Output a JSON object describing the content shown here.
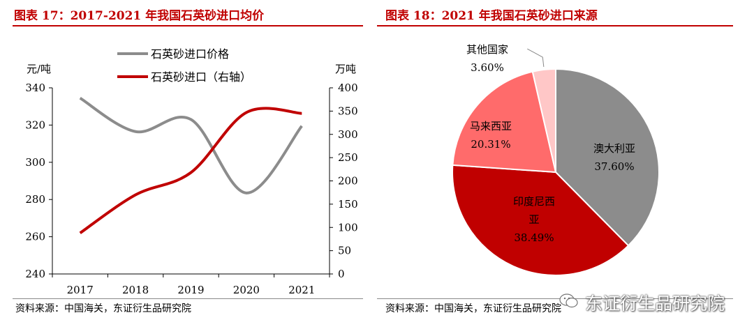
{
  "left_panel": {
    "title": "图表 17：2017-2021 年我国石英砂进口均价",
    "source": "资料来源：中国海关，东证衍生品研究院"
  },
  "right_panel": {
    "title": "图表 18：2021 年我国石英砂进口来源",
    "source": "资料来源：中国海关，东证衍生品研究院"
  },
  "watermark": {
    "text": "东证衍生品研究院",
    "icon": "wechat-icon"
  },
  "colors": {
    "title_red": "#c00000",
    "series_gray": "#8c8c8c",
    "series_red": "#c00000"
  },
  "chart_data": [
    {
      "type": "line",
      "title": "",
      "x": [
        "2017",
        "2018",
        "2019",
        "2020",
        "2021"
      ],
      "ylabel": "元/吨",
      "ylabel_right": "万吨",
      "ylim": [
        240,
        340
      ],
      "ylim_right": [
        0,
        400
      ],
      "yticks": [
        "240",
        "260",
        "280",
        "300",
        "320",
        "340"
      ],
      "yticks_right": [
        "0",
        "50",
        "100",
        "150",
        "200",
        "250",
        "300",
        "350",
        "400"
      ],
      "legend_position": "top",
      "grid": false,
      "series": [
        {
          "name": "石英砂进口价格",
          "axis": "left",
          "color": "#8c8c8c",
          "values": [
            334.5,
            316.5,
            323,
            283.5,
            319.5
          ]
        },
        {
          "name": "石英砂进口（右轴）",
          "axis": "right",
          "color": "#c00000",
          "values": [
            88,
            170,
            218,
            347,
            345
          ]
        }
      ]
    },
    {
      "type": "pie",
      "title": "",
      "slices": [
        {
          "label": "澳大利亚",
          "value": 37.6,
          "display": "37.60%",
          "color": "#8c8c8c"
        },
        {
          "label": "印度尼西亚",
          "value": 38.49,
          "display": "38.49%",
          "color": "#c00000"
        },
        {
          "label": "马来西亚",
          "value": 20.31,
          "display": "20.31%",
          "color": "#ff6b6b"
        },
        {
          "label": "其他国家",
          "value": 3.6,
          "display": "3.60%",
          "color": "#ffc7c7"
        }
      ]
    }
  ]
}
